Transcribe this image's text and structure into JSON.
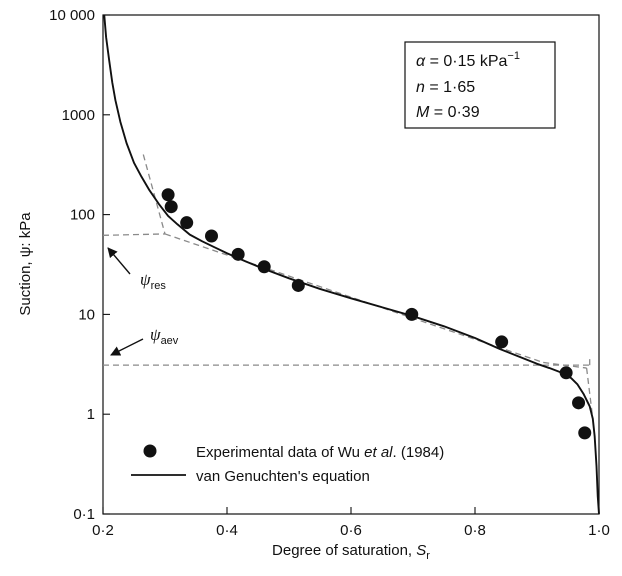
{
  "chart_data": {
    "type": "scatter",
    "xlabel": "Degree of saturation, ",
    "xlabel_symbol": "S",
    "xlabel_sub": "r",
    "ylabel": "Suction, ψ: kPa",
    "xlim": [
      0.2,
      1.0
    ],
    "ylim": [
      0.1,
      10000
    ],
    "y_scale": "log",
    "grid": false,
    "x_ticks": [
      0.2,
      0.4,
      0.6,
      0.8,
      1.0
    ],
    "x_tick_labels": [
      "0·2",
      "0·4",
      "0·6",
      "0·8",
      "1·0"
    ],
    "y_ticks": [
      0.1,
      1,
      10,
      100,
      1000,
      10000
    ],
    "y_tick_labels": [
      "0·1",
      "1",
      "10",
      "100",
      "1000",
      "10 000"
    ],
    "series": [
      {
        "name": "Experimental data of Wu et al. (1984)",
        "kind": "points",
        "x": [
          0.305,
          0.31,
          0.335,
          0.375,
          0.418,
          0.46,
          0.515,
          0.698,
          0.843,
          0.947,
          0.967,
          0.977
        ],
        "y": [
          158,
          120,
          83,
          61,
          40,
          30,
          19.5,
          10,
          5.3,
          2.6,
          1.3,
          0.65
        ]
      },
      {
        "name": "van Genuchten's equation",
        "kind": "line",
        "x": [
          0.202,
          0.205,
          0.21,
          0.215,
          0.22,
          0.228,
          0.238,
          0.25,
          0.262,
          0.275,
          0.29,
          0.305,
          0.32,
          0.34,
          0.36,
          0.38,
          0.4,
          0.43,
          0.46,
          0.5,
          0.55,
          0.6,
          0.65,
          0.7,
          0.75,
          0.8,
          0.84,
          0.87,
          0.9,
          0.92,
          0.94,
          0.955,
          0.965,
          0.975,
          0.985,
          0.99,
          0.993,
          0.996,
          0.998,
          1.0
        ],
        "y": [
          10000,
          6000,
          3500,
          2100,
          1400,
          850,
          520,
          330,
          240,
          175,
          128,
          97,
          80,
          63,
          54,
          47,
          41,
          34,
          28.5,
          23,
          18,
          14.5,
          11.8,
          9.6,
          7.6,
          5.8,
          4.5,
          3.8,
          3.2,
          2.9,
          2.6,
          2.3,
          2.0,
          1.6,
          1.2,
          0.9,
          0.6,
          0.3,
          0.15,
          0.1
        ]
      },
      {
        "kind": "dashed-construction",
        "segments": [
          {
            "x": [
              0.2,
              0.985
            ],
            "y": [
              3.1,
              3.1
            ]
          },
          {
            "x": [
              0.985,
              0.985
            ],
            "y": [
              3.1,
              3.7
            ]
          },
          {
            "x": [
              0.2,
              0.3
            ],
            "y": [
              62,
              64
            ]
          },
          {
            "x": [
              0.3,
              0.91
            ],
            "y": [
              64,
              3.3
            ]
          },
          {
            "x": [
              0.91,
              0.98
            ],
            "y": [
              3.3,
              2.9
            ]
          },
          {
            "x": [
              0.98,
              0.99
            ],
            "y": [
              2.9,
              0.9
            ]
          },
          {
            "x": [
              0.265,
              0.3
            ],
            "y": [
              400,
              64
            ]
          }
        ]
      }
    ],
    "legend": {
      "placement": "lower-left",
      "entries": [
        "Experimental data of Wu et al. (1984)",
        "van Genuchten's equation"
      ],
      "entry1_parts": [
        "Experimental data of Wu ",
        "et al",
        ". (1984)"
      ]
    },
    "parameters_box": {
      "placement": "top-right",
      "lines": [
        {
          "symbol": "α",
          "text": " = 0·15 kPa",
          "sup": "−1"
        },
        {
          "symbol": "n",
          "text": " = 1·65",
          "sup": ""
        },
        {
          "symbol": "M",
          "text": " = 0·39",
          "sup": ""
        }
      ]
    },
    "annotations": [
      {
        "symbol": "ψ",
        "sub": "res",
        "points_to": {
          "x": 0.2,
          "y": 62
        }
      },
      {
        "symbol": "ψ",
        "sub": "aev",
        "points_to": {
          "x": 0.2,
          "y": 3.1
        }
      }
    ]
  }
}
